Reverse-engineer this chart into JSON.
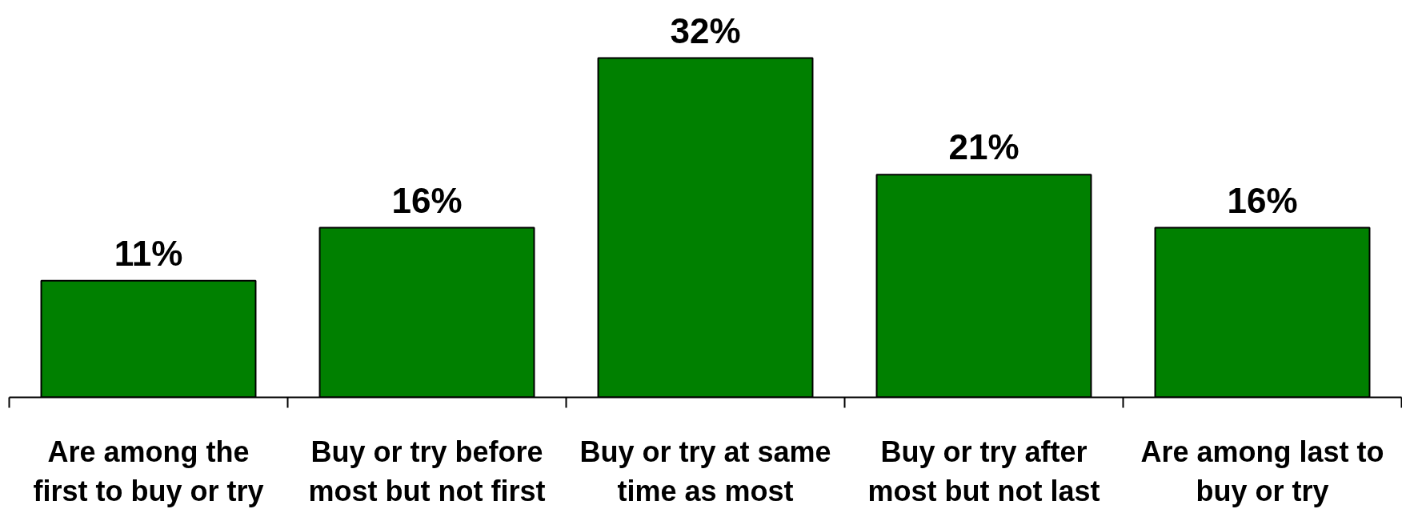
{
  "chart_data": {
    "type": "bar",
    "categories": [
      "Are among the\nfirst to buy or try",
      "Buy or try before\nmost but not first",
      "Buy or try at same\ntime as most",
      "Buy or try after\nmost but not last",
      "Are among last to\nbuy or try"
    ],
    "values": [
      11,
      16,
      32,
      21,
      16
    ],
    "color": "#008000",
    "value_labels": [
      "11%",
      "16%",
      "32%",
      "21%",
      "16%"
    ]
  }
}
